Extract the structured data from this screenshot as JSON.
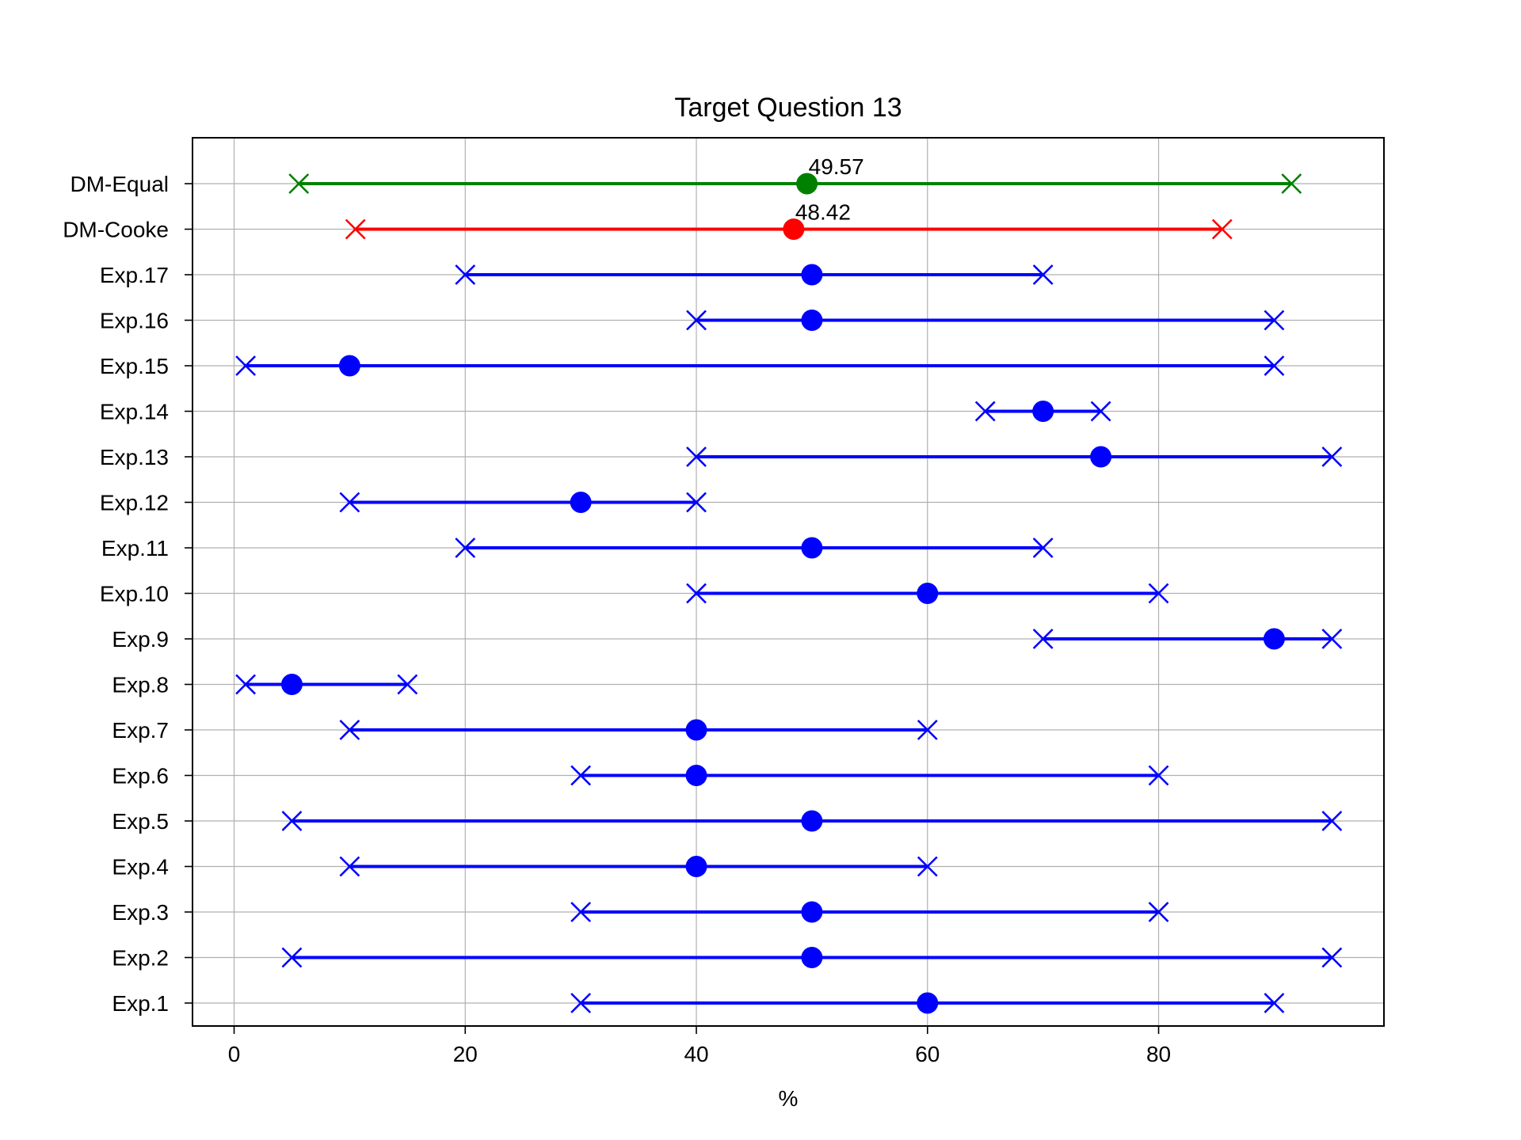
{
  "chart_data": {
    "type": "errorbar",
    "title": "Target Question 13",
    "xlabel": "%",
    "ylabel": "",
    "xlim": [
      -3.6,
      99.5
    ],
    "xticks": [
      0,
      20,
      40,
      60,
      80
    ],
    "grid": true,
    "rows": [
      {
        "label": "Exp.1",
        "low": 30,
        "median": 60,
        "high": 90,
        "color": "#0000ff"
      },
      {
        "label": "Exp.2",
        "low": 5,
        "median": 50,
        "high": 95,
        "color": "#0000ff"
      },
      {
        "label": "Exp.3",
        "low": 30,
        "median": 50,
        "high": 80,
        "color": "#0000ff"
      },
      {
        "label": "Exp.4",
        "low": 10,
        "median": 40,
        "high": 60,
        "color": "#0000ff"
      },
      {
        "label": "Exp.5",
        "low": 5,
        "median": 50,
        "high": 95,
        "color": "#0000ff"
      },
      {
        "label": "Exp.6",
        "low": 30,
        "median": 40,
        "high": 80,
        "color": "#0000ff"
      },
      {
        "label": "Exp.7",
        "low": 10,
        "median": 40,
        "high": 60,
        "color": "#0000ff"
      },
      {
        "label": "Exp.8",
        "low": 1,
        "median": 5,
        "high": 15,
        "color": "#0000ff"
      },
      {
        "label": "Exp.9",
        "low": 70,
        "median": 90,
        "high": 95,
        "color": "#0000ff"
      },
      {
        "label": "Exp.10",
        "low": 40,
        "median": 60,
        "high": 80,
        "color": "#0000ff"
      },
      {
        "label": "Exp.11",
        "low": 20,
        "median": 50,
        "high": 70,
        "color": "#0000ff"
      },
      {
        "label": "Exp.12",
        "low": 10,
        "median": 30,
        "high": 40,
        "color": "#0000ff"
      },
      {
        "label": "Exp.13",
        "low": 40,
        "median": 75,
        "high": 95,
        "color": "#0000ff"
      },
      {
        "label": "Exp.14",
        "low": 65,
        "median": 70,
        "high": 75,
        "color": "#0000ff"
      },
      {
        "label": "Exp.15",
        "low": 1,
        "median": 10,
        "high": 90,
        "color": "#0000ff"
      },
      {
        "label": "Exp.16",
        "low": 40,
        "median": 50,
        "high": 90,
        "color": "#0000ff"
      },
      {
        "label": "Exp.17",
        "low": 20,
        "median": 50,
        "high": 70,
        "color": "#0000ff"
      },
      {
        "label": "DM-Cooke",
        "low": 10.5,
        "median": 48.42,
        "high": 85.5,
        "color": "#ff0000",
        "annotation": "48.42"
      },
      {
        "label": "DM-Equal",
        "low": 5.6,
        "median": 49.57,
        "high": 91.5,
        "color": "#008000",
        "annotation": "49.57"
      }
    ]
  }
}
